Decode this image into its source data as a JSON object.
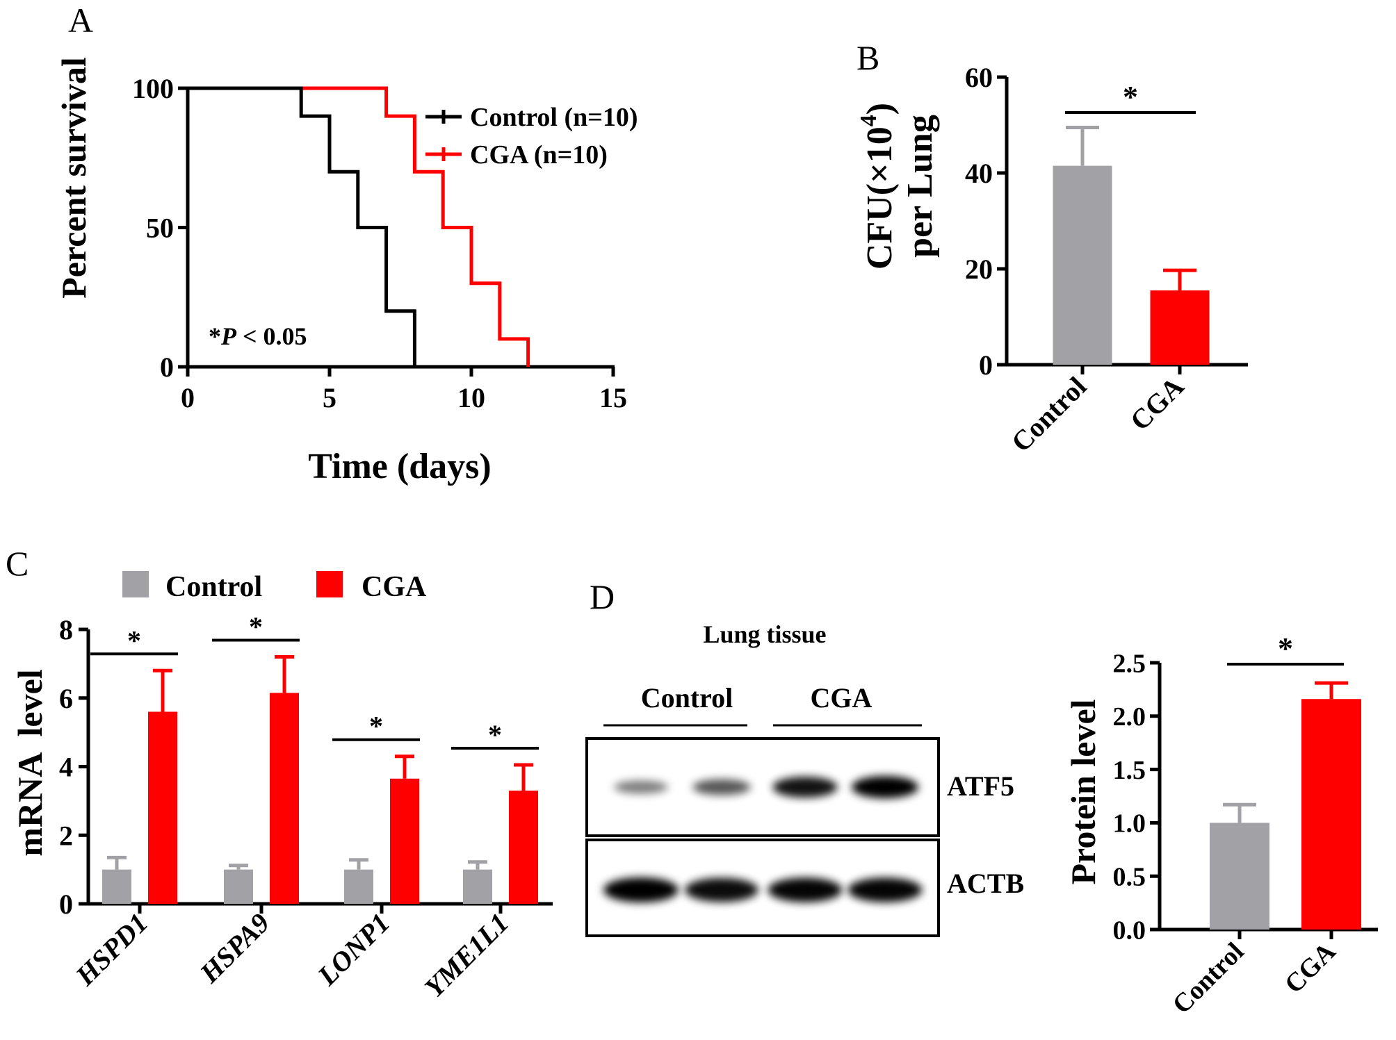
{
  "colors": {
    "control": "#a2a2a6",
    "cga": "#ff0000",
    "axis": "#000000",
    "km_control": "#000000",
    "km_cga": "#ff0000"
  },
  "panels": {
    "a": "A",
    "b": "B",
    "c": "C",
    "d": "D"
  },
  "chart_data": [
    {
      "id": "A",
      "type": "line",
      "subtype": "kaplan-meier",
      "xlabel": "Time (days)",
      "ylabel": "Percent survival",
      "xlim": [
        0,
        15
      ],
      "ylim": [
        0,
        100
      ],
      "xticks": [
        0,
        5,
        10,
        15
      ],
      "yticks": [
        0,
        50,
        100
      ],
      "annotation_star": "*",
      "annotation_p": "P",
      "annotation_rest": " < 0.05",
      "legend_position": "top-right",
      "series": [
        {
          "name": "Control (n=10)",
          "color": "#000000",
          "x": [
            0,
            4,
            5,
            6,
            7,
            8
          ],
          "y": [
            100,
            90,
            70,
            50,
            20,
            0
          ]
        },
        {
          "name": "CGA (n=10)",
          "color": "#ff0000",
          "x": [
            0,
            7,
            8,
            9,
            10,
            11,
            12
          ],
          "y": [
            100,
            90,
            70,
            50,
            30,
            10,
            0
          ]
        }
      ]
    },
    {
      "id": "B",
      "type": "bar",
      "ylabel_line1_main": "CFU(×10",
      "ylabel_line1_sup": "4",
      "ylabel_line1_end": ")",
      "ylabel_line2": "per Lung",
      "ylim": [
        0,
        60
      ],
      "yticks": [
        0,
        20,
        40,
        60
      ],
      "categories": [
        "Control",
        "CGA"
      ],
      "values": [
        41.5,
        15.5
      ],
      "errors": [
        8,
        4.2
      ],
      "colors": [
        "#a2a2a6",
        "#ff0000"
      ],
      "significance": "*"
    },
    {
      "id": "C",
      "type": "bar",
      "ylabel": "mRNA  level",
      "ylim": [
        0,
        8
      ],
      "yticks": [
        0,
        2,
        4,
        6,
        8
      ],
      "categories": [
        "HSPD1",
        "HSPA9",
        "LONP1",
        "YME1L1"
      ],
      "legend_position": "top",
      "series": [
        {
          "name": "Control",
          "color": "#a2a2a6",
          "values": [
            1.0,
            1.0,
            1.0,
            1.0
          ],
          "errors": [
            0.35,
            0.12,
            0.28,
            0.22
          ]
        },
        {
          "name": "CGA",
          "color": "#ff0000",
          "values": [
            5.6,
            6.15,
            3.65,
            3.3
          ],
          "errors": [
            1.2,
            1.05,
            0.65,
            0.75
          ]
        }
      ],
      "significance": [
        "*",
        "*",
        "*",
        "*"
      ]
    },
    {
      "id": "D-blot",
      "type": "image",
      "title": "Lung tissue",
      "groups": [
        "Control",
        "CGA"
      ],
      "rows": [
        "ATF5",
        "ACTB"
      ],
      "band_intensity_atf5": [
        0.35,
        0.55,
        0.9,
        1.0
      ],
      "band_intensity_actb": [
        1.0,
        0.9,
        0.95,
        0.95
      ]
    },
    {
      "id": "D",
      "type": "bar",
      "ylabel": "Protein level",
      "ylim": [
        0,
        2.5
      ],
      "yticks": [
        "0.0",
        "0.5",
        "1.0",
        "1.5",
        "2.0",
        "2.5"
      ],
      "categories": [
        "Control",
        "CGA"
      ],
      "values": [
        1.0,
        2.16
      ],
      "errors": [
        0.17,
        0.15
      ],
      "colors": [
        "#a2a2a6",
        "#ff0000"
      ],
      "significance": "*"
    }
  ]
}
